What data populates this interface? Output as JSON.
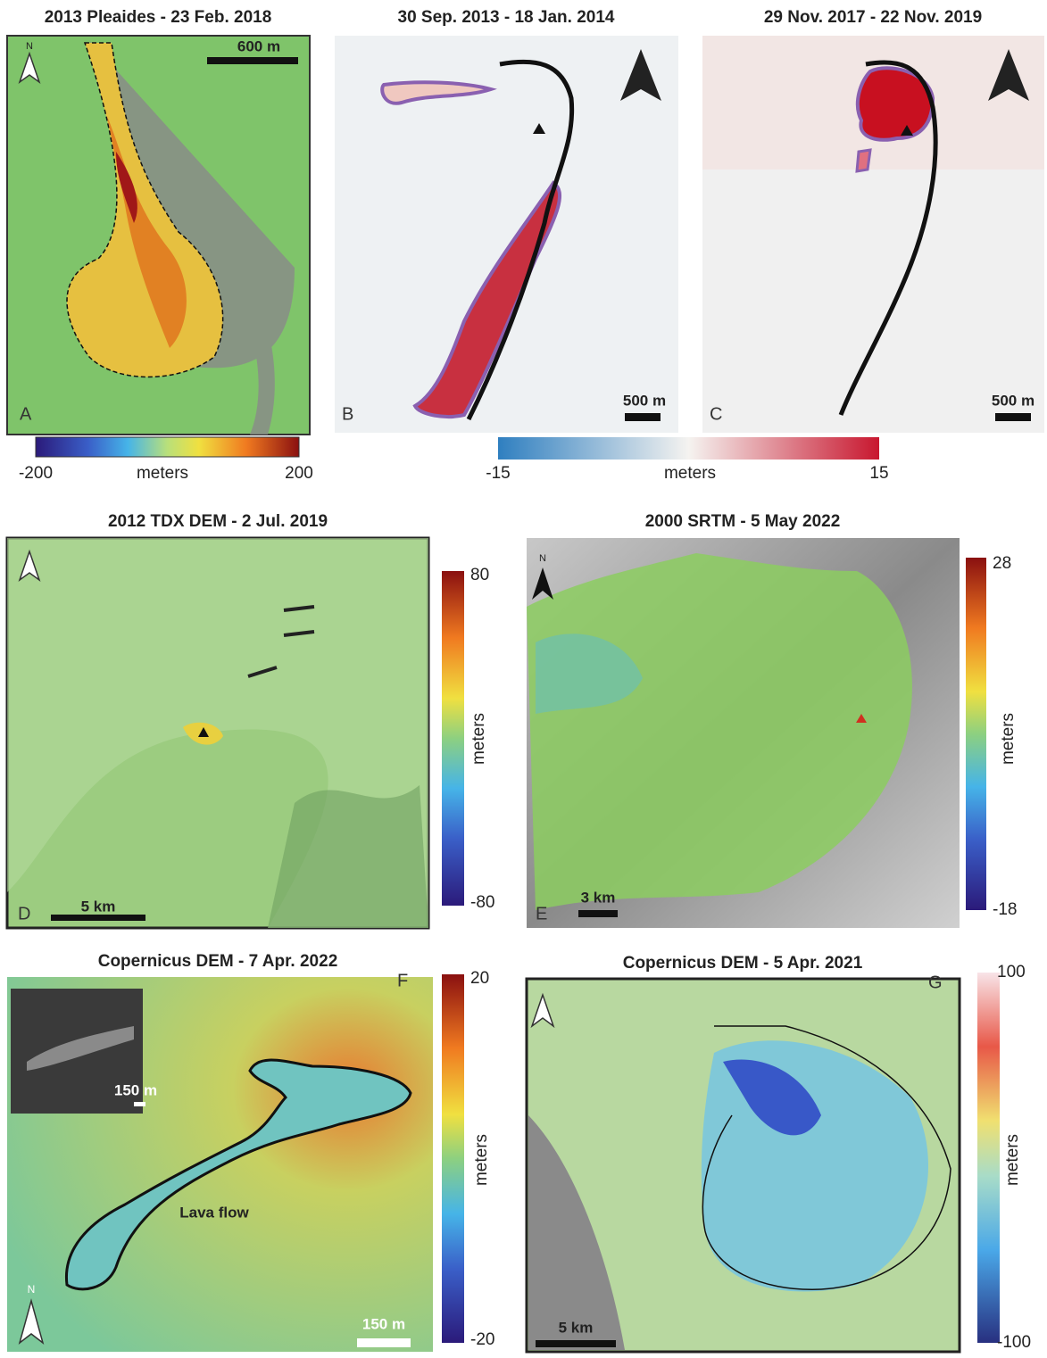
{
  "panels": [
    {
      "letter": "A",
      "title": "2013 Pleaides - 23 Feb. 2018",
      "scale": "600 m",
      "north": "N"
    },
    {
      "letter": "B",
      "title": "30 Sep. 2013 - 18 Jan. 2014",
      "scale": "500 m"
    },
    {
      "letter": "C",
      "title": "29 Nov. 2017 - 22 Nov. 2019",
      "scale": "500 m"
    },
    {
      "letter": "D",
      "title": "2012 TDX DEM - 2 Jul. 2019",
      "scale": "5 km"
    },
    {
      "letter": "E",
      "title": "2000 SRTM - 5 May 2022",
      "scale": "3 km",
      "north": "N"
    },
    {
      "letter": "F",
      "title": "Copernicus DEM - 7 Apr. 2022",
      "scale": "150 m",
      "inset_scale": "150 m",
      "annotation": "Lava flow",
      "north": "N"
    },
    {
      "letter": "G",
      "title": "Copernicus DEM - 5 Apr. 2021",
      "scale": "5 km"
    }
  ],
  "colorbars": [
    {
      "label": "meters",
      "min": -200,
      "max": 200
    },
    {
      "label": "meters",
      "min": -15,
      "max": 15
    },
    {
      "label": "meters",
      "min": -80,
      "max": 80
    },
    {
      "label": "meters",
      "min": -18,
      "max": 28
    },
    {
      "label": "meters",
      "min": -20,
      "max": 20
    },
    {
      "label": "meters",
      "min": -100,
      "max": 100
    }
  ]
}
